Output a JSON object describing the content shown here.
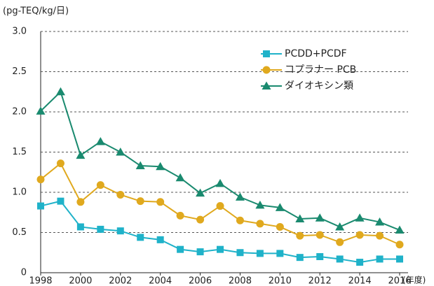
{
  "chart_data": {
    "type": "line",
    "y_label": "(pg-TEQ/kg/日)",
    "x_label": "(年度)",
    "x": [
      1998,
      1999,
      2000,
      2001,
      2002,
      2003,
      2004,
      2005,
      2006,
      2007,
      2008,
      2009,
      2010,
      2011,
      2012,
      2013,
      2014,
      2015,
      2016
    ],
    "series": [
      {
        "name": "PCDD+PCDF",
        "color": "#1fb2c9",
        "marker": "square",
        "values": [
          0.83,
          0.89,
          0.57,
          0.54,
          0.52,
          0.44,
          0.41,
          0.29,
          0.26,
          0.29,
          0.25,
          0.24,
          0.24,
          0.19,
          0.2,
          0.17,
          0.13,
          0.17,
          0.17
        ]
      },
      {
        "name": "コプラナー PCB",
        "color": "#e0a91e",
        "marker": "circle",
        "values": [
          1.16,
          1.36,
          0.88,
          1.09,
          0.97,
          0.89,
          0.88,
          0.71,
          0.66,
          0.83,
          0.65,
          0.61,
          0.57,
          0.46,
          0.47,
          0.38,
          0.47,
          0.46,
          0.35
        ]
      },
      {
        "name": "ダイオキシン類",
        "color": "#1a8a6f",
        "marker": "triangle",
        "values": [
          2.01,
          2.25,
          1.46,
          1.63,
          1.5,
          1.33,
          1.32,
          1.18,
          0.99,
          1.11,
          0.94,
          0.84,
          0.81,
          0.67,
          0.68,
          0.57,
          0.68,
          0.63,
          0.53
        ]
      }
    ],
    "xlim": [
      1998,
      2016
    ],
    "xticks": [
      1998,
      2000,
      2002,
      2004,
      2006,
      2008,
      2010,
      2012,
      2014,
      2016
    ],
    "ylim": [
      0,
      3
    ],
    "yticks": [
      0,
      0.5,
      {
        "value": 1,
        "label": "1.0"
      },
      1.5,
      {
        "value": 2,
        "label": "2.0"
      },
      2.5,
      {
        "value": 3,
        "label": "3.0"
      }
    ],
    "grid": true,
    "legend": "upper right"
  }
}
